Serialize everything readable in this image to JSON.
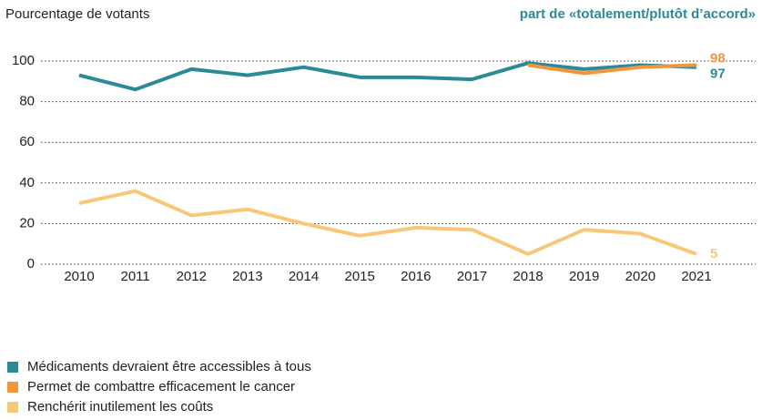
{
  "chart_data": {
    "type": "line",
    "y_axis_label": "Pourcentage de votants",
    "subtitle": "part de «totalement/plutôt d’accord»",
    "x": [
      2010,
      2011,
      2012,
      2013,
      2014,
      2015,
      2016,
      2017,
      2018,
      2019,
      2020,
      2021
    ],
    "xlim": [
      2010,
      2021
    ],
    "ylim": [
      0,
      100
    ],
    "yticks": [
      0,
      20,
      40,
      60,
      80,
      100
    ],
    "grid": true,
    "legend": "bottom-left",
    "series": [
      {
        "name": "Médicaments devraient être accessibles à tous",
        "color": "#2b8a98",
        "values": [
          93,
          86,
          96,
          93,
          97,
          92,
          92,
          91,
          99,
          96,
          98,
          97
        ]
      },
      {
        "name": "Permet de combattre efficacement le cancer",
        "color": "#f0963c",
        "values": [
          null,
          null,
          null,
          null,
          null,
          null,
          null,
          null,
          98,
          94,
          97,
          98
        ]
      },
      {
        "name": "Renchérit inutilement les coûts",
        "color": "#f8c878",
        "values": [
          30,
          36,
          24,
          27,
          20,
          14,
          18,
          17,
          5,
          17,
          15,
          5
        ]
      }
    ]
  }
}
